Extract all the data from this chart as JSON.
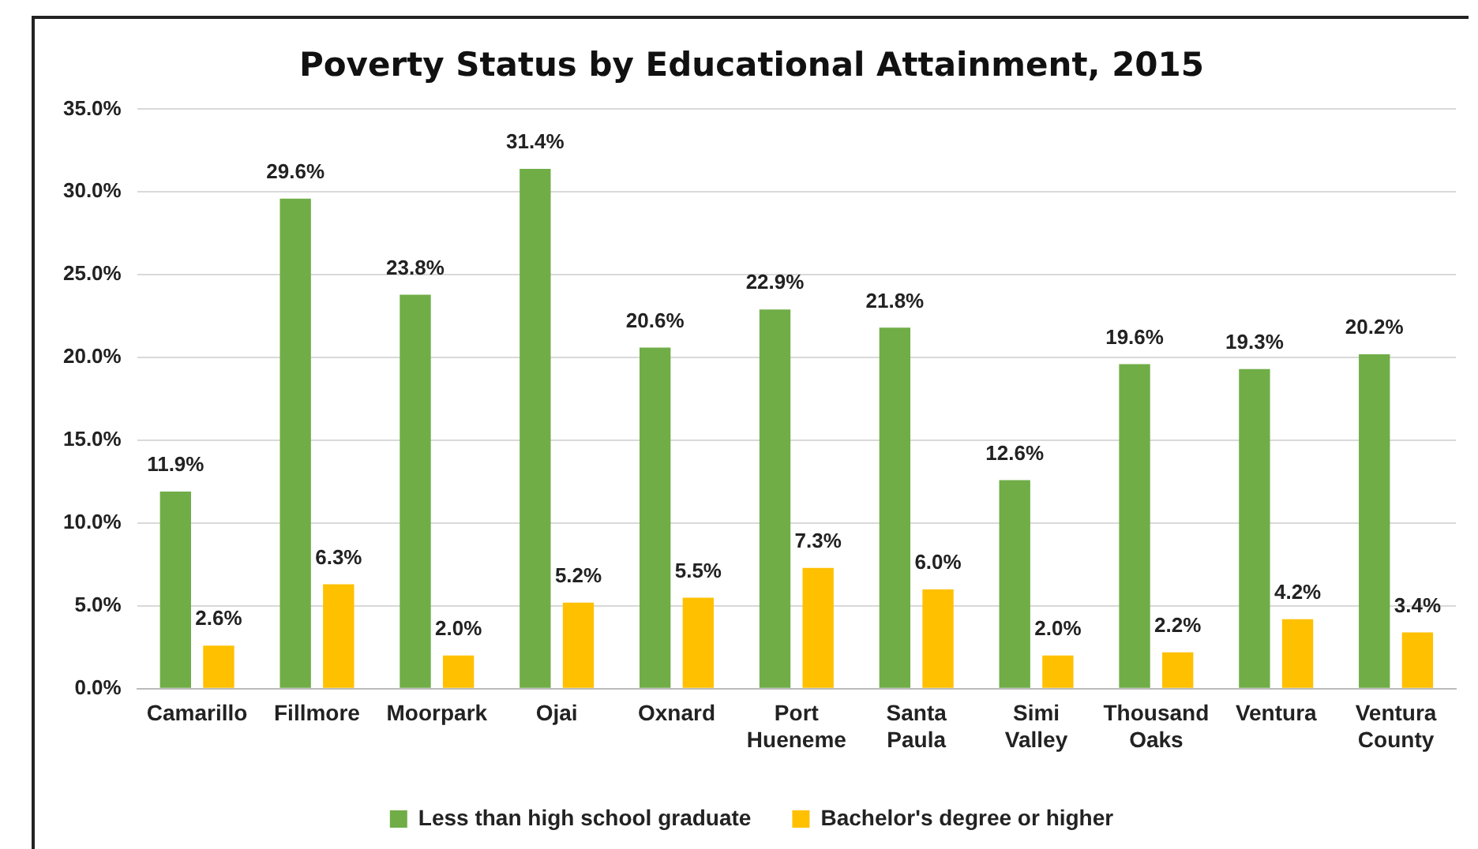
{
  "chart_data": {
    "type": "bar",
    "title": "Poverty Status by Educational Attainment, 2015",
    "categories": [
      "Camarillo",
      "Fillmore",
      "Moorpark",
      "Ojai",
      "Oxnard",
      "Port Hueneme",
      "Santa Paula",
      "Simi Valley",
      "Thousand Oaks",
      "Ventura",
      "Ventura County"
    ],
    "series": [
      {
        "name": "Less than high school graduate",
        "color": "#70ad47",
        "values": [
          11.9,
          29.6,
          23.8,
          31.4,
          20.6,
          22.9,
          21.8,
          12.6,
          19.6,
          19.3,
          20.2
        ],
        "value_labels": [
          "11.9%",
          "29.6%",
          "23.8%",
          "31.4%",
          "20.6%",
          "22.9%",
          "21.8%",
          "12.6%",
          "19.6%",
          "19.3%",
          "20.2%"
        ]
      },
      {
        "name": "Bachelor's degree or higher",
        "color": "#ffc000",
        "values": [
          2.6,
          6.3,
          2.0,
          5.2,
          5.5,
          7.3,
          6.0,
          2.0,
          2.2,
          4.2,
          3.4
        ],
        "value_labels": [
          "2.6%",
          "6.3%",
          "2.0%",
          "5.2%",
          "5.5%",
          "7.3%",
          "6.0%",
          "2.0%",
          "2.2%",
          "4.2%",
          "3.4%"
        ]
      }
    ],
    "ylim": [
      0,
      35
    ],
    "yticks": [
      {
        "value": 0,
        "label": "0.0%"
      },
      {
        "value": 5,
        "label": "5.0%"
      },
      {
        "value": 10,
        "label": "10.0%"
      },
      {
        "value": 15,
        "label": "15.0%"
      },
      {
        "value": 20,
        "label": "20.0%"
      },
      {
        "value": 25,
        "label": "25.0%"
      },
      {
        "value": 30,
        "label": "30.0%"
      },
      {
        "value": 35,
        "label": "35.0%"
      }
    ],
    "grid": "y",
    "legend": "bottom"
  }
}
